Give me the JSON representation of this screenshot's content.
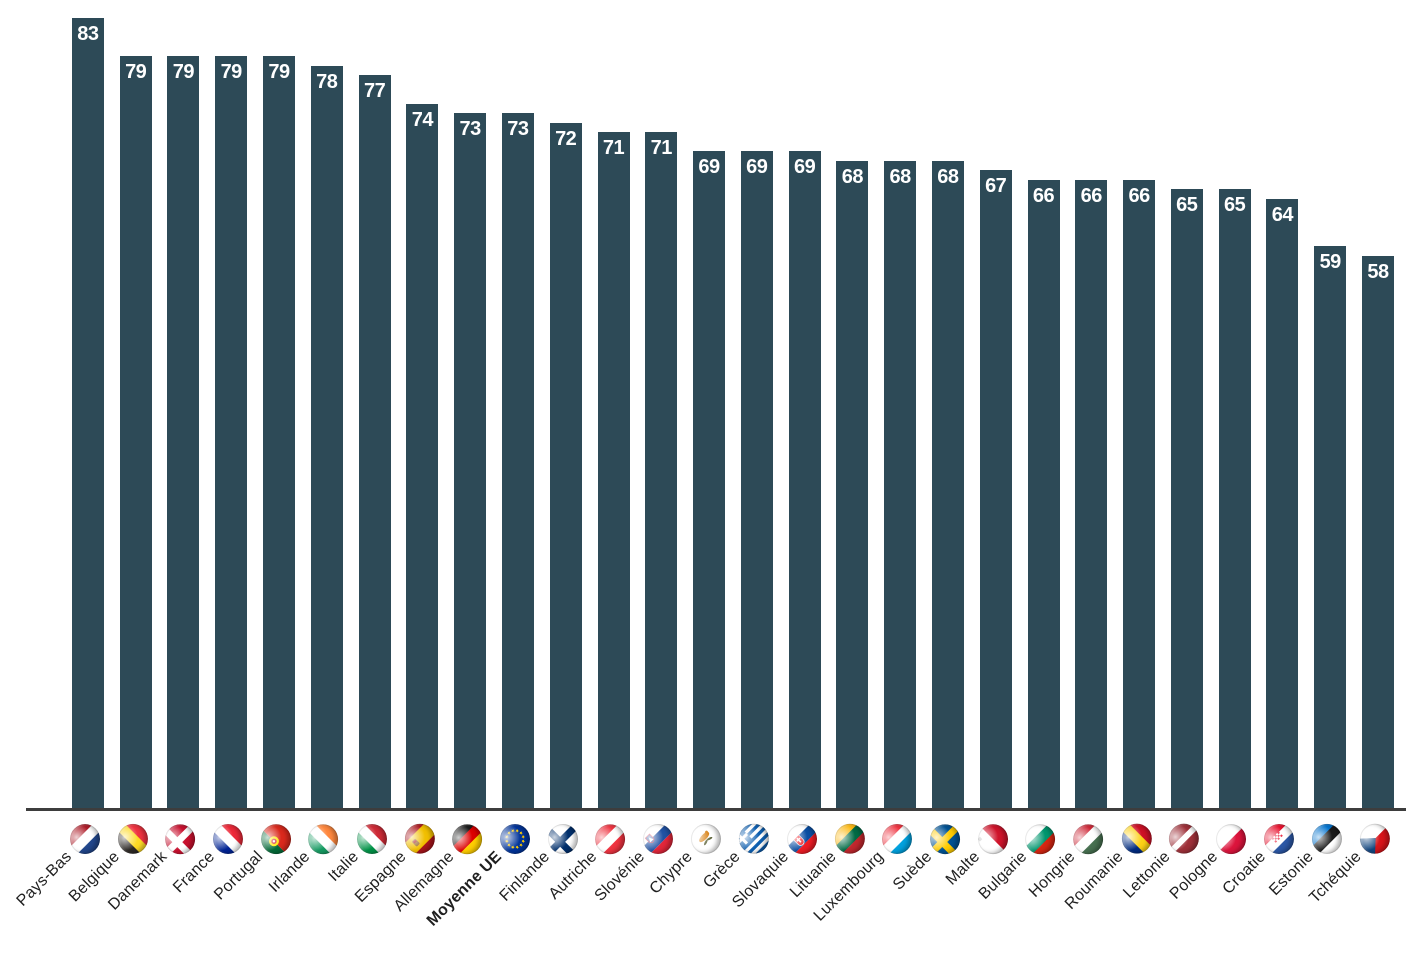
{
  "chart_data": {
    "type": "bar",
    "title": "",
    "xlabel": "",
    "ylabel": "",
    "ylim": [
      0,
      84
    ],
    "grid": false,
    "legend": "none",
    "bar_color": "#2D4A57",
    "value_label_color": "#FFFFFF",
    "axis_line_color": "#3D3D3D",
    "category_label_color": "#1F1F1F",
    "bold_category": "Moyenne UE",
    "categories": [
      "Pays-Bas",
      "Belgique",
      "Danemark",
      "France",
      "Portugal",
      "Irlande",
      "Italie",
      "Espagne",
      "Allemagne",
      "Moyenne UE",
      "Finlande",
      "Autriche",
      "Slovénie",
      "Chypre",
      "Grèce",
      "Slovaquie",
      "Lituanie",
      "Luxembourg",
      "Suède",
      "Malte",
      "Bulgarie",
      "Hongrie",
      "Roumanie",
      "Lettonie",
      "Pologne",
      "Croatie",
      "Estonie",
      "Tchéquie"
    ],
    "values": [
      83,
      79,
      79,
      79,
      79,
      78,
      77,
      74,
      73,
      73,
      72,
      71,
      71,
      69,
      69,
      69,
      68,
      68,
      68,
      67,
      66,
      66,
      66,
      65,
      65,
      64,
      59,
      58
    ],
    "flags": [
      {
        "icon": "flag-pays-bas-icon",
        "kind": "h",
        "colors": [
          "#AE1C28",
          "#FFFFFF",
          "#21468B"
        ]
      },
      {
        "icon": "flag-belgique-icon",
        "kind": "v",
        "colors": [
          "#2D2926",
          "#FDDA24",
          "#EF3340"
        ]
      },
      {
        "icon": "flag-danemark-icon",
        "kind": "cross",
        "bg": "#C8102E",
        "cross": "#FFFFFF"
      },
      {
        "icon": "flag-france-icon",
        "kind": "v",
        "colors": [
          "#002395",
          "#FFFFFF",
          "#ED2939"
        ]
      },
      {
        "icon": "flag-portugal-icon",
        "kind": "portugal",
        "colors": [
          "#046A38",
          "#DA291C",
          "#FFE900"
        ]
      },
      {
        "icon": "flag-irlande-icon",
        "kind": "v",
        "colors": [
          "#169B62",
          "#FFFFFF",
          "#FF883E"
        ]
      },
      {
        "icon": "flag-italie-icon",
        "kind": "v",
        "colors": [
          "#009246",
          "#FFFFFF",
          "#CE2B37"
        ]
      },
      {
        "icon": "flag-espagne-icon",
        "kind": "spain",
        "colors": [
          "#AA151B",
          "#F1BF00",
          "#9C6B30"
        ]
      },
      {
        "icon": "flag-allemagne-icon",
        "kind": "h",
        "colors": [
          "#1A1A1A",
          "#DD0000",
          "#FFCE00"
        ]
      },
      {
        "icon": "flag-moyenne-ue-icon",
        "kind": "eu",
        "colors": [
          "#003399",
          "#FFCC00"
        ]
      },
      {
        "icon": "flag-finlande-icon",
        "kind": "cross",
        "bg": "#FFFFFF",
        "cross": "#002F6C"
      },
      {
        "icon": "flag-autriche-icon",
        "kind": "h",
        "colors": [
          "#EF3340",
          "#FFFFFF",
          "#EF3340"
        ]
      },
      {
        "icon": "flag-slovenie-icon",
        "kind": "slovenia",
        "colors": [
          "#FFFFFF",
          "#2152A3",
          "#E3263A"
        ]
      },
      {
        "icon": "flag-chypre-icon",
        "kind": "cyprus",
        "colors": [
          "#FFFFFF",
          "#D47600",
          "#5B6236"
        ]
      },
      {
        "icon": "flag-grece-icon",
        "kind": "greece",
        "colors": [
          "#0D5EAF",
          "#FFFFFF"
        ]
      },
      {
        "icon": "flag-slovaquie-icon",
        "kind": "slovakia",
        "colors": [
          "#FFFFFF",
          "#0B4EA2",
          "#EE1C25"
        ]
      },
      {
        "icon": "flag-lituanie-icon",
        "kind": "h",
        "colors": [
          "#FDB913",
          "#006A44",
          "#C1272D"
        ]
      },
      {
        "icon": "flag-luxembourg-icon",
        "kind": "h",
        "colors": [
          "#EF3340",
          "#FFFFFF",
          "#00A1DE"
        ]
      },
      {
        "icon": "flag-suede-icon",
        "kind": "cross",
        "bg": "#005293",
        "cross": "#FECB00"
      },
      {
        "icon": "flag-malte-icon",
        "kind": "malta",
        "colors": [
          "#FFFFFF",
          "#CF142B"
        ]
      },
      {
        "icon": "flag-bulgarie-icon",
        "kind": "h",
        "colors": [
          "#FFFFFF",
          "#00966E",
          "#D62612"
        ]
      },
      {
        "icon": "flag-hongrie-icon",
        "kind": "h",
        "colors": [
          "#CE2939",
          "#FFFFFF",
          "#477050"
        ]
      },
      {
        "icon": "flag-roumanie-icon",
        "kind": "v",
        "colors": [
          "#002B7F",
          "#FCD116",
          "#CE1126"
        ]
      },
      {
        "icon": "flag-lettonie-icon",
        "kind": "h",
        "colors": [
          "#9E3039",
          "#FFFFFF",
          "#9E3039"
        ],
        "ratios": [
          2,
          1,
          2
        ]
      },
      {
        "icon": "flag-pologne-icon",
        "kind": "h",
        "colors": [
          "#FFFFFF",
          "#DC143C"
        ],
        "ratios": [
          1,
          1
        ]
      },
      {
        "icon": "flag-croatie-icon",
        "kind": "croatia",
        "colors": [
          "#E8112D",
          "#FFFFFF",
          "#2B57A5"
        ]
      },
      {
        "icon": "flag-estonie-icon",
        "kind": "h",
        "colors": [
          "#0072CE",
          "#1A1A1A",
          "#FFFFFF"
        ]
      },
      {
        "icon": "flag-tchequie-icon",
        "kind": "czech",
        "colors": [
          "#FFFFFF",
          "#D7141A",
          "#11457E"
        ]
      }
    ]
  }
}
